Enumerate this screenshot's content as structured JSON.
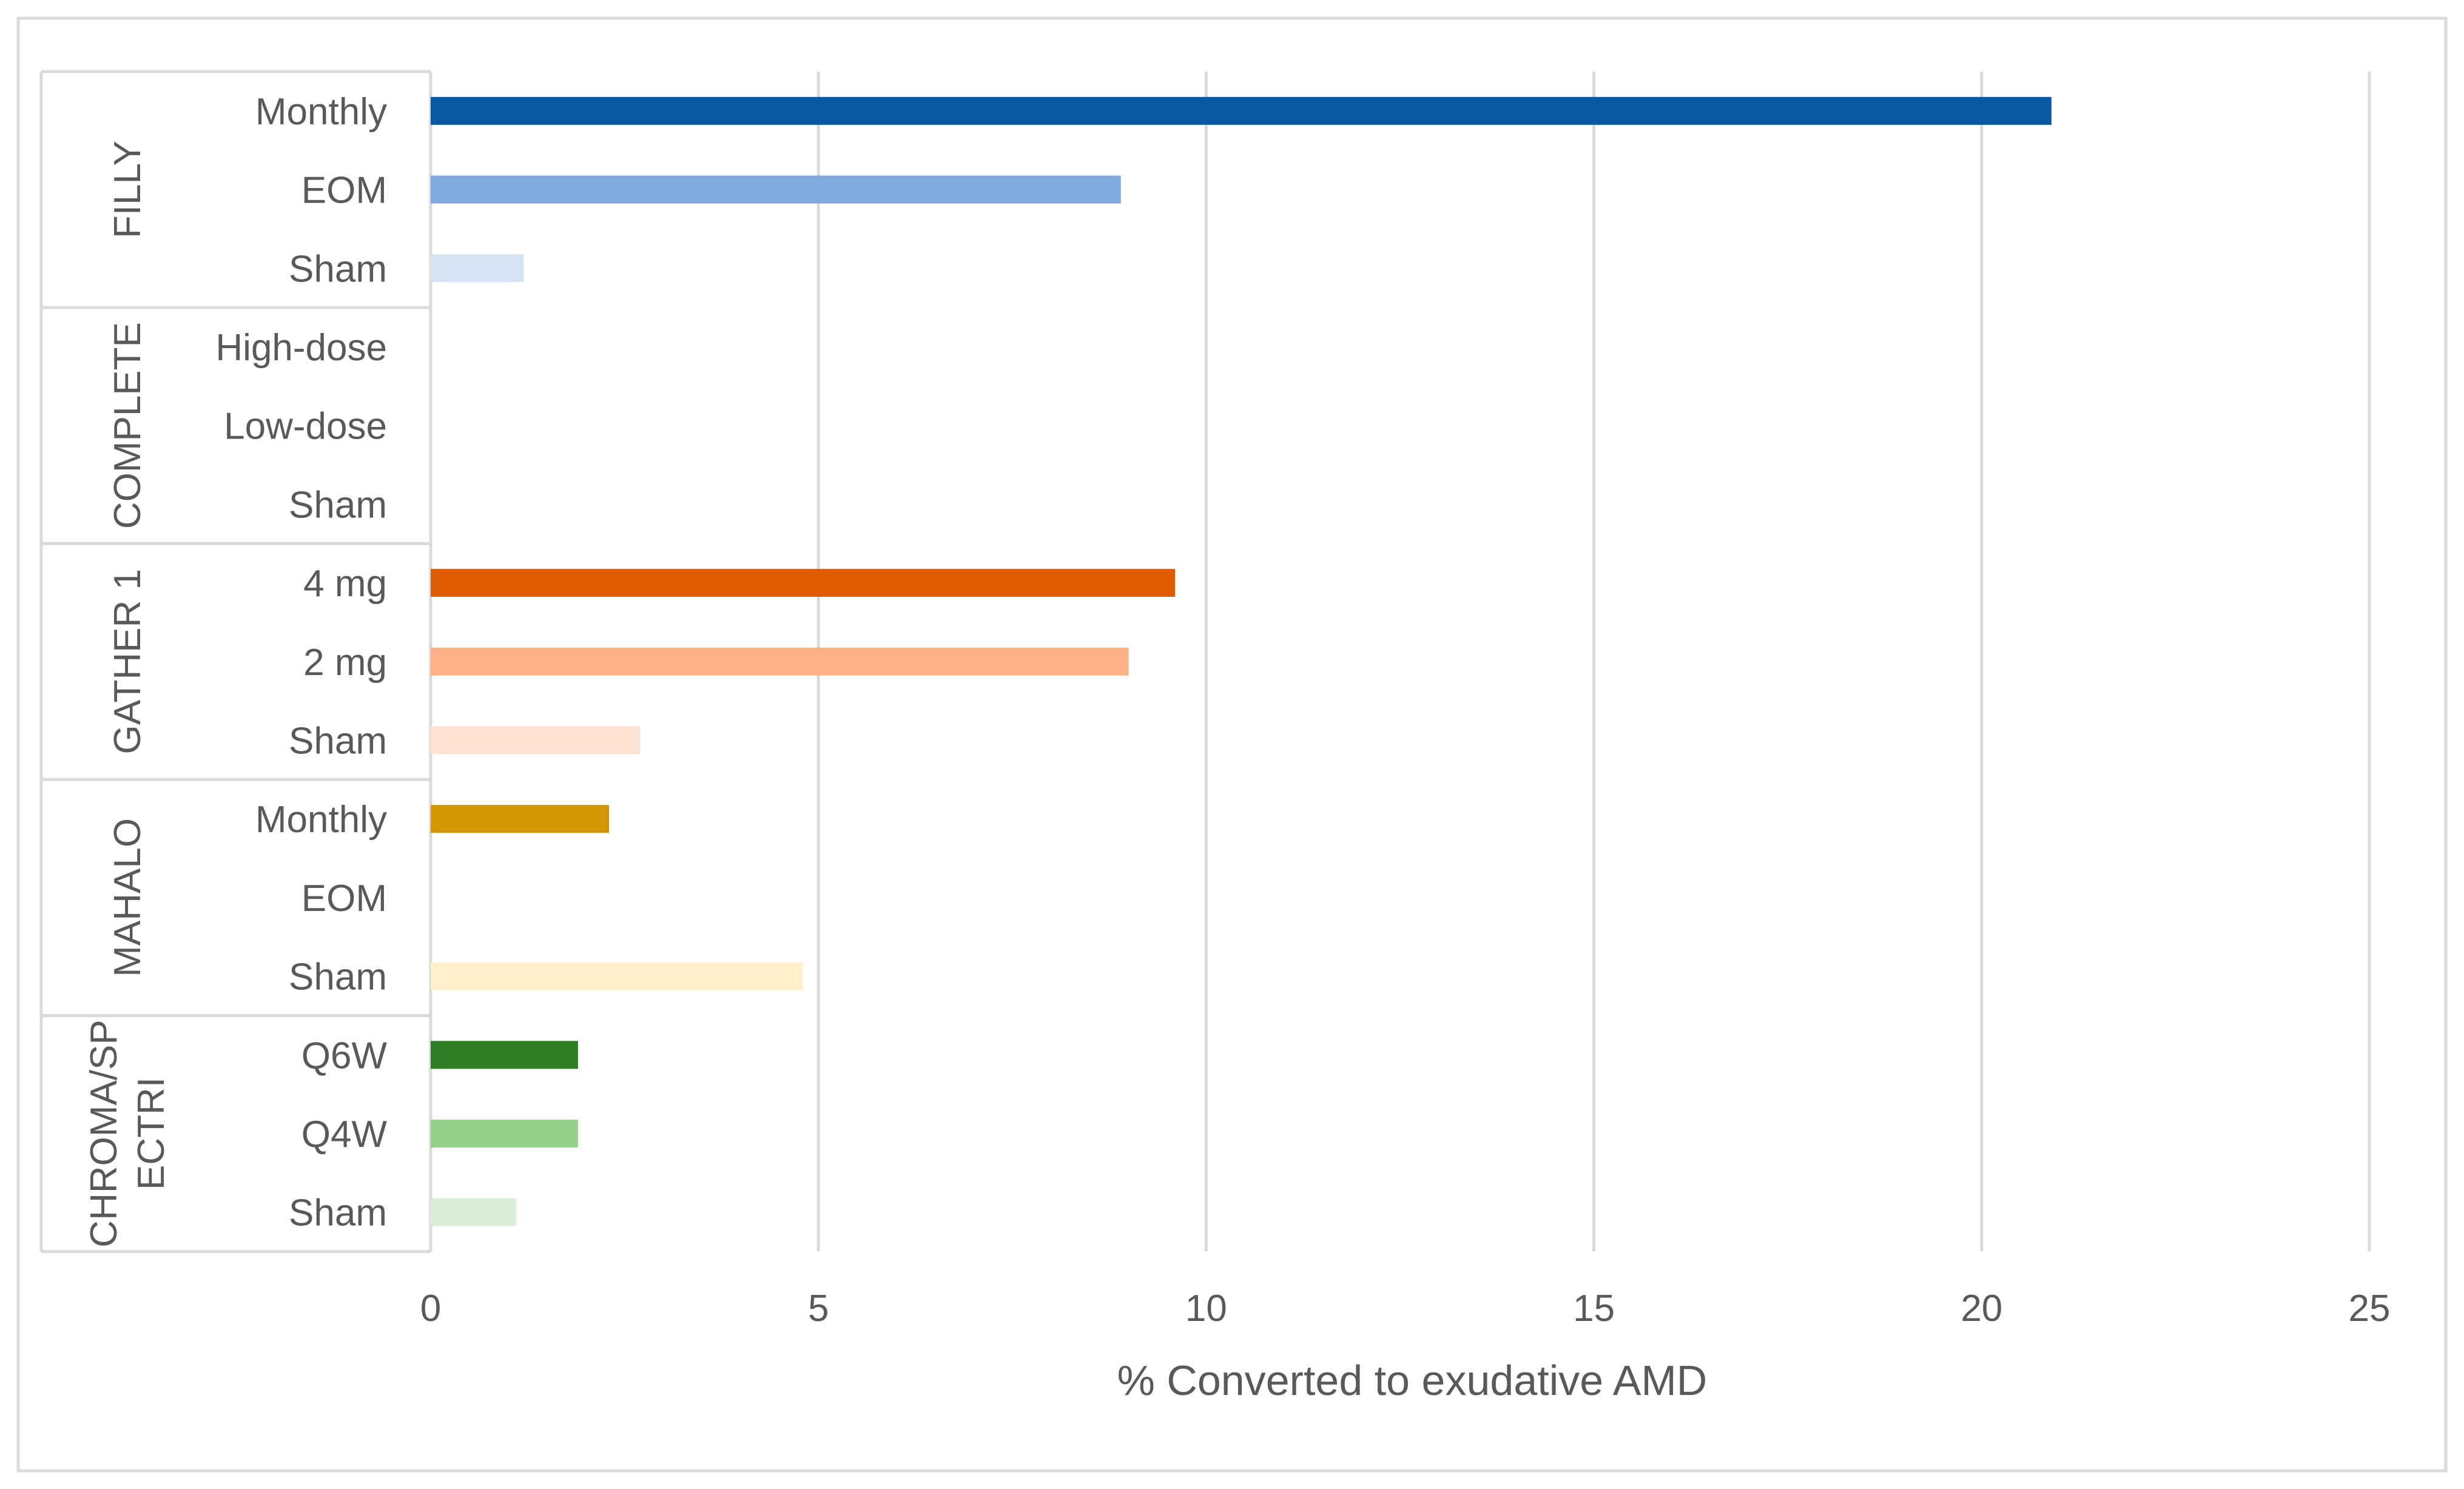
{
  "chart_data": {
    "type": "bar",
    "orientation": "horizontal",
    "title": "",
    "xlabel": "% Converted to exudative AMD",
    "ylabel": "",
    "xlim": [
      0,
      25
    ],
    "xticks": [
      0,
      5,
      10,
      15,
      20,
      25
    ],
    "grid": true,
    "legend": "none",
    "groups": [
      {
        "name": "FILLY",
        "bars": [
          {
            "label": "Monthly",
            "value": 20.9,
            "color": "#0a58a3"
          },
          {
            "label": "EOM",
            "value": 8.9,
            "color": "#7fa9df"
          },
          {
            "label": "Sham",
            "value": 1.2,
            "color": "#d6e4f4"
          }
        ]
      },
      {
        "name": "COMPLETE",
        "bars": [
          {
            "label": "High-dose",
            "value": 0,
            "color": "#7f7f7f"
          },
          {
            "label": "Low-dose",
            "value": 0,
            "color": "#a6a6a6"
          },
          {
            "label": "Sham",
            "value": 0,
            "color": "#d9d9d9"
          }
        ]
      },
      {
        "name": "GATHER 1",
        "bars": [
          {
            "label": "4 mg",
            "value": 9.6,
            "color": "#e05c03"
          },
          {
            "label": "2 mg",
            "value": 9.0,
            "color": "#fbb183"
          },
          {
            "label": "Sham",
            "value": 2.7,
            "color": "#fde2d3"
          }
        ]
      },
      {
        "name": "MAHALO",
        "bars": [
          {
            "label": "Monthly",
            "value": 2.3,
            "color": "#d29504"
          },
          {
            "label": "EOM",
            "value": 0,
            "color": "#f2cc72"
          },
          {
            "label": "Sham",
            "value": 4.8,
            "color": "#fdf0c9"
          }
        ]
      },
      {
        "name": "CHROMA/SPECTRI",
        "name_lines": [
          "CHROMA/SP",
          "ECTRI"
        ],
        "bars": [
          {
            "label": "Q6W",
            "value": 1.9,
            "color": "#2f7d25"
          },
          {
            "label": "Q4W",
            "value": 1.9,
            "color": "#95d18a"
          },
          {
            "label": "Sham",
            "value": 1.1,
            "color": "#dbf0d6"
          }
        ]
      }
    ]
  }
}
